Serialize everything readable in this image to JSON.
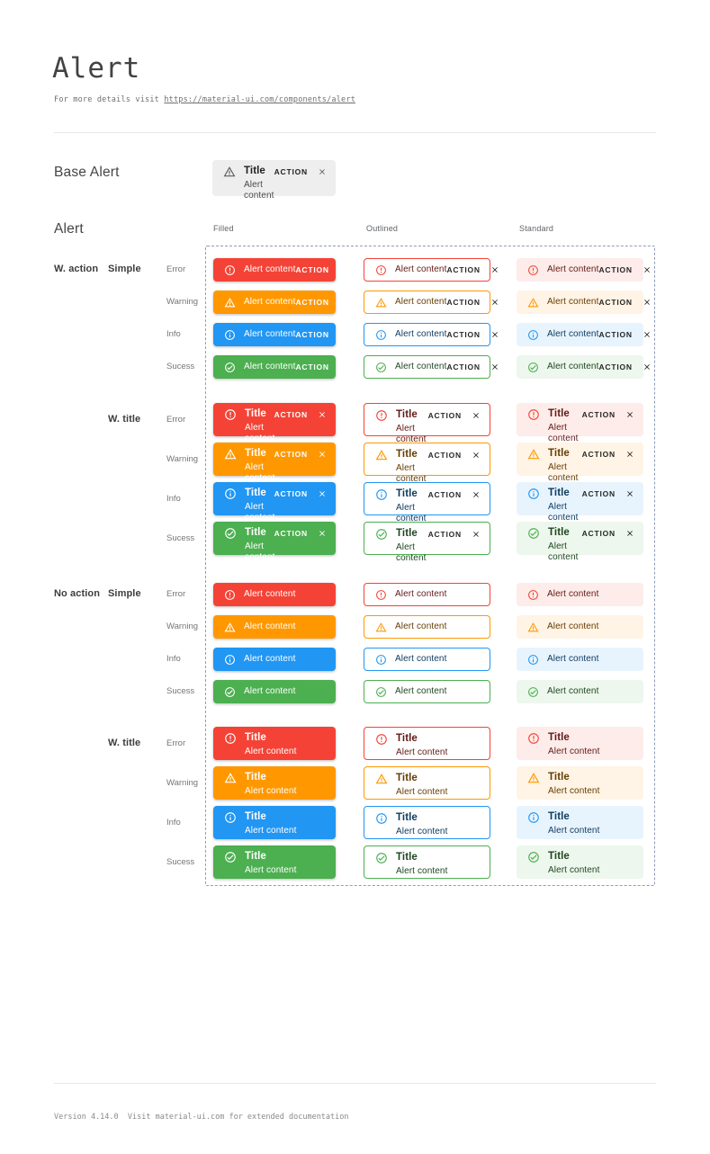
{
  "page": {
    "title": "Alert",
    "subtitle_prefix": "For more details visit ",
    "subtitle_link": "https://material-ui.com/components/alert",
    "footer": "Version 4.14.0  Visit material-ui.com for extended documentation"
  },
  "base_alert": {
    "section_label": "Base Alert",
    "title": "Title",
    "content": "Alert content",
    "action_label": "ACTION",
    "icon": "warning-triangle-icon",
    "background": "#eeeeee",
    "icon_color": "#5f5f5f",
    "title_color": "#212121",
    "content_color": "#4a4a4a"
  },
  "alert_section": {
    "heading": "Alert",
    "columns": [
      "Filled",
      "Outlined",
      "Standard"
    ],
    "alert_title": "Title",
    "alert_content": "Alert content",
    "action_label": "ACTION"
  },
  "groups": [
    {
      "label": "W. action",
      "sub_label": "Simple",
      "with_action": true,
      "with_title": false
    },
    {
      "label": "",
      "sub_label": "W. title",
      "with_action": true,
      "with_title": true
    },
    {
      "label": "No action",
      "sub_label": "Simple",
      "with_action": false,
      "with_title": false
    },
    {
      "label": "",
      "sub_label": "W. title",
      "with_action": false,
      "with_title": true
    }
  ],
  "severities": [
    {
      "key": "error",
      "label": "Error",
      "icon": "error-outline-icon",
      "main": "#f44336",
      "standard_bg": "#fdecea",
      "dark_text": "#611a15"
    },
    {
      "key": "warning",
      "label": "Warning",
      "icon": "warning-triangle-icon",
      "main": "#ff9800",
      "standard_bg": "#fff4e5",
      "dark_text": "#663c00"
    },
    {
      "key": "info",
      "label": "Info",
      "icon": "info-outline-icon",
      "main": "#2196f3",
      "standard_bg": "#e8f4fd",
      "dark_text": "#0d3c61"
    },
    {
      "key": "success",
      "label": "Sucess",
      "icon": "check-circle-outline-icon",
      "main": "#4caf50",
      "standard_bg": "#edf7ed",
      "dark_text": "#1e4620"
    }
  ],
  "colors": {
    "dashed_border": "#8f9bba",
    "divider": "#e8e8e8",
    "filled_text": "#ffffff",
    "neutral_action_text": "rgba(0,0,0,0.85)"
  }
}
